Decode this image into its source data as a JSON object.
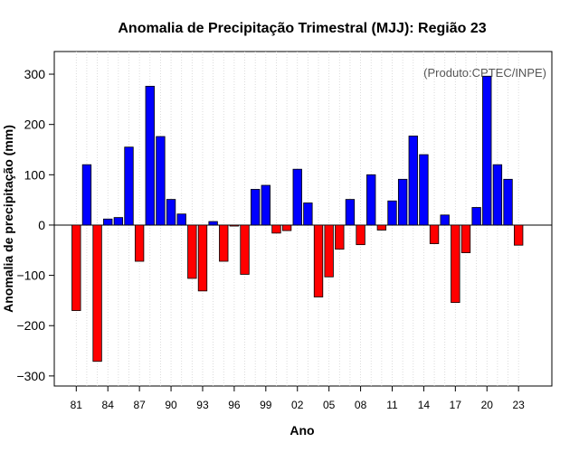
{
  "chart_data": {
    "type": "bar",
    "title": "Anomalia de Precipitação Trimestral (MJJ): Região 23",
    "xlabel": "Ano",
    "ylabel": "Anomalia de precipitação (mm)",
    "annotation": "(Produto:CPTEC/INPE)",
    "ylim": [
      -320,
      345
    ],
    "yticks": [
      -300,
      -200,
      -100,
      0,
      100,
      200,
      300
    ],
    "x_tick_labels": [
      "81",
      "84",
      "87",
      "90",
      "93",
      "96",
      "99",
      "02",
      "05",
      "08",
      "11",
      "14",
      "17",
      "20",
      "23"
    ],
    "years": [
      1981,
      1982,
      1983,
      1984,
      1985,
      1986,
      1987,
      1988,
      1989,
      1990,
      1991,
      1992,
      1993,
      1994,
      1995,
      1996,
      1997,
      1998,
      1999,
      2000,
      2001,
      2002,
      2003,
      2004,
      2005,
      2006,
      2007,
      2008,
      2009,
      2010,
      2011,
      2012,
      2013,
      2014,
      2015,
      2016,
      2017,
      2018,
      2019,
      2020,
      2021,
      2022,
      2023
    ],
    "values": [
      -170,
      120,
      -271,
      12,
      15,
      155,
      -72,
      276,
      176,
      51,
      22,
      -106,
      -131,
      7,
      -72,
      -2,
      -98,
      71,
      79,
      -16,
      -11,
      111,
      44,
      -143,
      -103,
      -48,
      51,
      -39,
      100,
      -10,
      48,
      91,
      177,
      140,
      -37,
      20,
      -154,
      -55,
      35,
      296,
      120,
      91,
      -40
    ],
    "positive_color": "#0000ff",
    "negative_color": "#ff0000",
    "grid": "vertical dotted"
  }
}
